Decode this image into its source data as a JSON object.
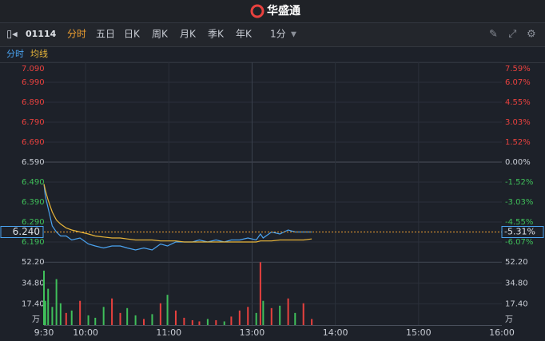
{
  "header": {
    "title": "华盛通"
  },
  "toolbar": {
    "code": "01114",
    "tabs": [
      "分时",
      "五日",
      "日K",
      "周K",
      "月K",
      "季K",
      "年K"
    ],
    "active_tab": 0,
    "interval": "1分"
  },
  "chart_data": {
    "type": "line",
    "x": [
      0,
      1,
      3,
      6,
      9,
      12,
      16,
      20,
      26,
      32,
      37,
      43,
      49,
      55,
      60,
      66,
      72,
      78,
      84,
      89,
      95,
      101,
      107,
      112,
      118,
      124,
      130,
      135,
      141,
      147,
      153,
      156,
      158,
      164,
      170,
      176,
      181,
      187,
      193
    ],
    "xlim": [
      0,
      330
    ],
    "xticks": [
      {
        "value": 0,
        "label": "9:30"
      },
      {
        "value": 30,
        "label": "10:00"
      },
      {
        "value": 90,
        "label": "11:00"
      },
      {
        "value": 150,
        "label": "13:00"
      },
      {
        "value": 210,
        "label": "14:00"
      },
      {
        "value": 270,
        "label": "15:00"
      },
      {
        "value": 330,
        "label": "16:00"
      }
    ],
    "ylim": [
      6.09,
      7.09
    ],
    "yticks": [
      {
        "value": 7.09,
        "label": "7.090"
      },
      {
        "value": 6.99,
        "label": "6.990"
      },
      {
        "value": 6.89,
        "label": "6.890"
      },
      {
        "value": 6.79,
        "label": "6.790"
      },
      {
        "value": 6.69,
        "label": "6.690"
      },
      {
        "value": 6.59,
        "label": "6.590"
      },
      {
        "value": 6.49,
        "label": "6.490"
      },
      {
        "value": 6.39,
        "label": "6.390"
      },
      {
        "value": 6.29,
        "label": "6.290"
      },
      {
        "value": 6.19,
        "label": "6.190"
      }
    ],
    "y2lim": [
      -7.59,
      7.59
    ],
    "y2ticks": [
      {
        "value": 7.59,
        "label": "7.59%"
      },
      {
        "value": 6.07,
        "label": "6.07%"
      },
      {
        "value": 4.55,
        "label": "4.55%"
      },
      {
        "value": 3.03,
        "label": "3.03%"
      },
      {
        "value": 1.52,
        "label": "1.52%"
      },
      {
        "value": 0,
        "label": "0.00%"
      },
      {
        "value": -1.52,
        "label": "-1.52%"
      },
      {
        "value": -3.03,
        "label": "-3.03%"
      },
      {
        "value": -4.55,
        "label": "-4.55%"
      },
      {
        "value": -6.07,
        "label": "-6.07%"
      }
    ],
    "reference": 6.59,
    "grid": true,
    "series": [
      {
        "name": "分时",
        "color": "#4aa3f0",
        "values": [
          6.48,
          6.42,
          6.36,
          6.27,
          6.24,
          6.22,
          6.22,
          6.2,
          6.21,
          6.18,
          6.17,
          6.16,
          6.17,
          6.17,
          6.16,
          6.15,
          6.16,
          6.15,
          6.18,
          6.17,
          6.19,
          6.19,
          6.19,
          6.2,
          6.19,
          6.2,
          6.19,
          6.2,
          6.2,
          6.21,
          6.2,
          6.23,
          6.21,
          6.24,
          6.23,
          6.25,
          6.24,
          6.24,
          6.24
        ]
      },
      {
        "name": "均线",
        "color": "#e8b53a",
        "values": [
          6.48,
          6.45,
          6.4,
          6.34,
          6.3,
          6.28,
          6.26,
          6.25,
          6.24,
          6.23,
          6.22,
          6.215,
          6.21,
          6.21,
          6.205,
          6.2,
          6.2,
          6.2,
          6.195,
          6.195,
          6.195,
          6.19,
          6.19,
          6.19,
          6.19,
          6.19,
          6.19,
          6.19,
          6.19,
          6.19,
          6.19,
          6.195,
          6.195,
          6.195,
          6.2,
          6.2,
          6.2,
          6.2,
          6.205
        ]
      }
    ],
    "last_price": {
      "value": 6.24,
      "label": "6.240"
    },
    "last_change": {
      "value": -5.31,
      "label": "-5.31%"
    },
    "volume": {
      "values": [
        45,
        20,
        30,
        15,
        38,
        18,
        10,
        12,
        20,
        8,
        6,
        15,
        22,
        10,
        14,
        8,
        5,
        9,
        18,
        25,
        12,
        6,
        4,
        3,
        5,
        4,
        3,
        7,
        12,
        15,
        10,
        52,
        20,
        14,
        16,
        22,
        10,
        18,
        5
      ],
      "ylim": [
        0,
        52.2
      ],
      "yticks": [
        {
          "value": 52.2,
          "label": "52.20"
        },
        {
          "value": 34.8,
          "label": "34.80"
        },
        {
          "value": 17.4,
          "label": "17.40"
        }
      ],
      "unit": "万",
      "up_color": "#e8413e",
      "down_color": "#3fbf5a"
    }
  }
}
